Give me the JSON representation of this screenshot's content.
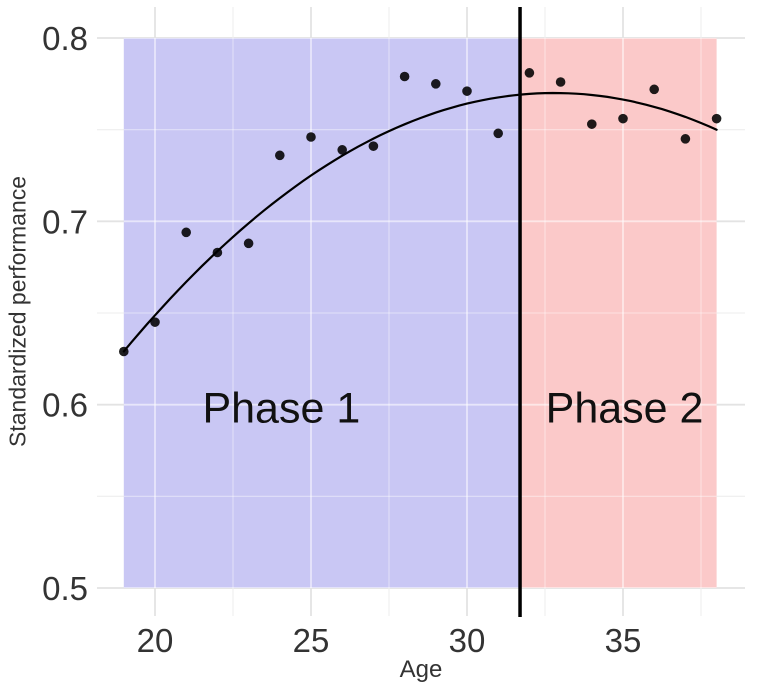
{
  "chart_data": {
    "type": "scatter",
    "title": "",
    "xlabel": "Age",
    "ylabel": "Standardized performance",
    "xlim": [
      18.1,
      38.9
    ],
    "ylim": [
      0.485,
      0.817
    ],
    "x_ticks": [
      20,
      25,
      30,
      35
    ],
    "x_minor_ticks": [
      22.5,
      27.5,
      32.5,
      37.5
    ],
    "y_ticks": [
      0.5,
      0.6,
      0.7,
      0.8
    ],
    "y_minor_ticks": [
      0.55,
      0.65,
      0.75
    ],
    "grid": true,
    "legend": "none",
    "points": {
      "x": [
        19,
        20,
        21,
        22,
        23,
        24,
        25,
        26,
        27,
        28,
        29,
        30,
        31,
        32,
        33,
        34,
        35,
        36,
        37,
        38
      ],
      "y": [
        0.629,
        0.645,
        0.694,
        0.683,
        0.688,
        0.736,
        0.746,
        0.739,
        0.741,
        0.779,
        0.775,
        0.771,
        0.748,
        0.781,
        0.776,
        0.753,
        0.756,
        0.772,
        0.745,
        0.756
      ]
    },
    "fit_curve": {
      "type": "quadratic",
      "peak_x": 32.8,
      "peak_y": 0.77,
      "a": -0.00074,
      "domain": [
        19,
        38
      ]
    },
    "phase_divider_x": 31.7,
    "value_span": [
      0.5,
      0.8
    ],
    "regions": [
      {
        "label": "Phase 1",
        "from": 19,
        "to": 31.7,
        "color": "#c9c7f4",
        "label_x": 24.05,
        "label_y": 0.599
      },
      {
        "label": "Phase 2",
        "from": 31.7,
        "to": 38,
        "color": "#fbc9c9",
        "label_x": 35.05,
        "label_y": 0.599
      }
    ],
    "colors": {
      "point": "#000000",
      "curve": "#000000",
      "divider": "#000000",
      "grid_major": "#e3e3e3",
      "grid_minor": "#eeeeee",
      "tick_text": "#333333",
      "axis_text": "#333333",
      "phase_text": "#111111",
      "background": "#ffffff"
    }
  }
}
